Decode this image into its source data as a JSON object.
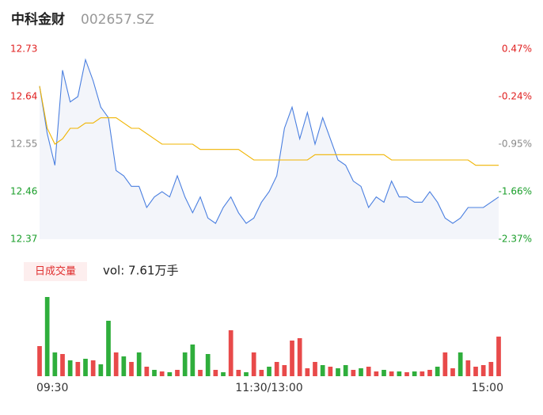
{
  "header": {
    "title": "中科金财",
    "code": "002657.SZ"
  },
  "chart_data": [
    {
      "type": "line",
      "xlim": [
        0,
        240
      ],
      "ylim": [
        12.37,
        12.73
      ],
      "yticks": [
        12.37,
        12.46,
        12.55,
        12.64,
        12.73
      ],
      "ytick_colors": [
        "#1a9e2a",
        "#1a9e2a",
        "#888888",
        "#e02020",
        "#e02020"
      ],
      "y2lim": [
        -2.37,
        0.47
      ],
      "y2ticks": [
        {
          "value": -2.37,
          "label": "-2.37%"
        },
        {
          "value": -1.66,
          "label": "-1.66%"
        },
        {
          "value": -0.95,
          "label": "-0.95%"
        },
        {
          "value": -0.24,
          "label": "-0.24%"
        },
        {
          "value": 0.47,
          "label": "0.47%"
        }
      ],
      "area_color": "#f3f5fa",
      "x": [
        0,
        4,
        8,
        12,
        16,
        20,
        24,
        28,
        32,
        36,
        40,
        44,
        48,
        52,
        56,
        60,
        64,
        68,
        72,
        76,
        80,
        84,
        88,
        92,
        96,
        100,
        104,
        108,
        112,
        116,
        120,
        124,
        128,
        132,
        136,
        140,
        144,
        148,
        152,
        156,
        160,
        164,
        168,
        172,
        176,
        180,
        184,
        188,
        192,
        196,
        200,
        204,
        208,
        212,
        216,
        220,
        224,
        228,
        232,
        236,
        240
      ],
      "series": [
        {
          "color": "#4a7fe0",
          "values": [
            12.66,
            12.57,
            12.51,
            12.69,
            12.63,
            12.64,
            12.71,
            12.67,
            12.62,
            12.6,
            12.5,
            12.49,
            12.47,
            12.47,
            12.43,
            12.45,
            12.46,
            12.45,
            12.49,
            12.45,
            12.42,
            12.45,
            12.41,
            12.4,
            12.43,
            12.45,
            12.42,
            12.4,
            12.41,
            12.44,
            12.46,
            12.49,
            12.58,
            12.62,
            12.56,
            12.61,
            12.55,
            12.6,
            12.56,
            12.52,
            12.51,
            12.48,
            12.47,
            12.43,
            12.45,
            12.44,
            12.48,
            12.45,
            12.45,
            12.44,
            12.44,
            12.46,
            12.44,
            12.41,
            12.4,
            12.41,
            12.43,
            12.43,
            12.43,
            12.44,
            12.45
          ]
        },
        {
          "color": "#f0b400",
          "values": [
            12.66,
            12.58,
            12.55,
            12.56,
            12.58,
            12.58,
            12.59,
            12.59,
            12.6,
            12.6,
            12.6,
            12.59,
            12.58,
            12.58,
            12.57,
            12.56,
            12.55,
            12.55,
            12.55,
            12.55,
            12.55,
            12.54,
            12.54,
            12.54,
            12.54,
            12.54,
            12.54,
            12.53,
            12.52,
            12.52,
            12.52,
            12.52,
            12.52,
            12.52,
            12.52,
            12.52,
            12.53,
            12.53,
            12.53,
            12.53,
            12.53,
            12.53,
            12.53,
            12.53,
            12.53,
            12.53,
            12.52,
            12.52,
            12.52,
            12.52,
            12.52,
            12.52,
            12.52,
            12.52,
            12.52,
            12.52,
            12.52,
            12.51,
            12.51,
            12.51,
            12.51
          ]
        }
      ]
    },
    {
      "type": "bar",
      "tag": "日成交量",
      "subtitle": "vol: 7.61万手",
      "xlim": [
        0,
        240
      ],
      "ylim": [
        0,
        107
      ],
      "xticks": [
        {
          "value": 0,
          "label": "09:30"
        },
        {
          "value": 120,
          "label": "11:30/13:00"
        },
        {
          "value": 240,
          "label": "15:00"
        }
      ],
      "x": [
        0,
        4,
        8,
        12,
        16,
        20,
        24,
        28,
        32,
        36,
        40,
        44,
        48,
        52,
        56,
        60,
        64,
        68,
        72,
        76,
        80,
        84,
        88,
        92,
        96,
        100,
        104,
        108,
        112,
        116,
        120,
        124,
        128,
        132,
        136,
        140,
        144,
        148,
        152,
        156,
        160,
        164,
        168,
        172,
        176,
        180,
        184,
        188,
        192,
        196,
        200,
        204,
        208,
        212,
        216,
        220,
        224,
        228,
        232,
        236,
        240
      ],
      "values": [
        38,
        100,
        30,
        28,
        20,
        18,
        22,
        20,
        15,
        70,
        30,
        25,
        18,
        30,
        12,
        8,
        6,
        5,
        8,
        30,
        40,
        8,
        28,
        8,
        5,
        58,
        8,
        5,
        30,
        8,
        12,
        18,
        14,
        45,
        48,
        10,
        18,
        14,
        12,
        10,
        14,
        8,
        10,
        12,
        6,
        8,
        6,
        6,
        5,
        6,
        6,
        8,
        12,
        30,
        10,
        30,
        20,
        12,
        14,
        18,
        50
      ],
      "colors": [
        "#e84a4a",
        "#2fae3c",
        "#2fae3c",
        "#e84a4a",
        "#2fae3c",
        "#e84a4a",
        "#2fae3c",
        "#e84a4a",
        "#2fae3c",
        "#2fae3c",
        "#e84a4a",
        "#2fae3c",
        "#e84a4a",
        "#2fae3c",
        "#e84a4a",
        "#2fae3c",
        "#e84a4a",
        "#2fae3c",
        "#e84a4a",
        "#2fae3c",
        "#2fae3c",
        "#e84a4a",
        "#2fae3c",
        "#e84a4a",
        "#2fae3c",
        "#e84a4a",
        "#e84a4a",
        "#2fae3c",
        "#e84a4a",
        "#e84a4a",
        "#2fae3c",
        "#e84a4a",
        "#e84a4a",
        "#e84a4a",
        "#e84a4a",
        "#e84a4a",
        "#e84a4a",
        "#2fae3c",
        "#e84a4a",
        "#2fae3c",
        "#2fae3c",
        "#e84a4a",
        "#2fae3c",
        "#e84a4a",
        "#e84a4a",
        "#2fae3c",
        "#e84a4a",
        "#2fae3c",
        "#e84a4a",
        "#2fae3c",
        "#e84a4a",
        "#e84a4a",
        "#2fae3c",
        "#e84a4a",
        "#e84a4a",
        "#2fae3c",
        "#e84a4a",
        "#e84a4a",
        "#e84a4a",
        "#e84a4a",
        "#e84a4a"
      ]
    }
  ]
}
